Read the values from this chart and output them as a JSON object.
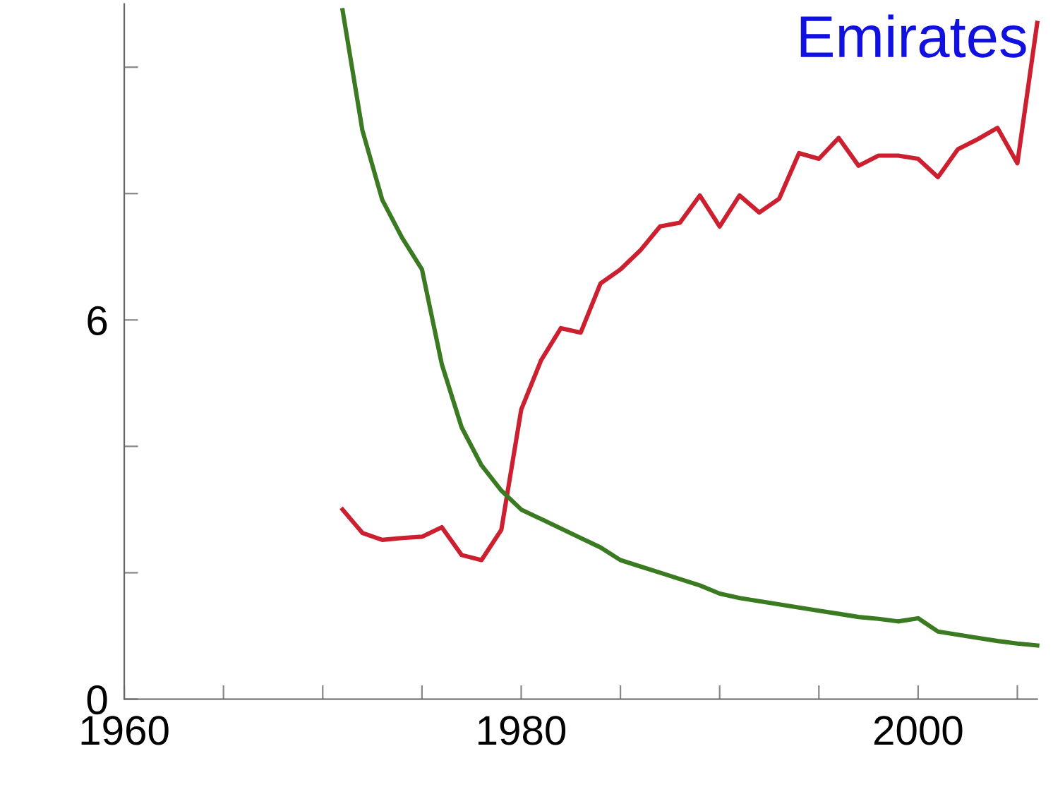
{
  "chart_data": {
    "type": "line",
    "title": "Emirates",
    "x": [
      1971,
      1972,
      1973,
      1974,
      1975,
      1976,
      1977,
      1978,
      1979,
      1980,
      1981,
      1982,
      1983,
      1984,
      1985,
      1986,
      1987,
      1988,
      1989,
      1990,
      1991,
      1992,
      1993,
      1994,
      1995,
      1996,
      1997,
      1998,
      1999,
      2000,
      2001,
      2002,
      2003,
      2004,
      2005,
      2006
    ],
    "series": [
      {
        "color": "#cc2030",
        "values": [
          3.0,
          2.63,
          2.52,
          2.55,
          2.57,
          2.72,
          2.28,
          2.2,
          2.68,
          4.58,
          5.36,
          5.87,
          5.8,
          6.58,
          6.8,
          7.1,
          7.48,
          7.54,
          7.97,
          7.48,
          7.97,
          7.7,
          7.92,
          8.64,
          8.55,
          8.88,
          8.44,
          8.6,
          8.6,
          8.55,
          8.26,
          8.7,
          8.86,
          9.04,
          8.48,
          10.7
        ]
      },
      {
        "color": "#3a7a20",
        "values": [
          10.9,
          9.0,
          7.9,
          7.3,
          6.8,
          5.3,
          4.3,
          3.7,
          3.3,
          3.0,
          2.85,
          2.7,
          2.55,
          2.4,
          2.2,
          2.1,
          2.0,
          1.9,
          1.8,
          1.67,
          1.6,
          1.55,
          1.5,
          1.45,
          1.4,
          1.35,
          1.3,
          1.27,
          1.23,
          1.28,
          1.07,
          1.02,
          0.97,
          0.92,
          0.88,
          0.85
        ]
      }
    ],
    "xlim": [
      1960,
      2006
    ],
    "xticks": [
      1960,
      {
        "value": 1965,
        "label": null
      },
      {
        "value": 1970,
        "label": null
      },
      {
        "value": 1975,
        "label": null
      },
      1980,
      {
        "value": 1985,
        "label": null
      },
      {
        "value": 1990,
        "label": null
      },
      {
        "value": 1995,
        "label": null
      },
      2000,
      {
        "value": 2005,
        "label": null
      }
    ],
    "ylim": [
      0,
      11
    ],
    "yticks": [
      0,
      {
        "value": 2,
        "label": null
      },
      {
        "value": 4,
        "label": null
      },
      6,
      {
        "value": 8,
        "label": null
      },
      {
        "value": 10,
        "label": null
      }
    ],
    "grid": false,
    "legend": false
  }
}
